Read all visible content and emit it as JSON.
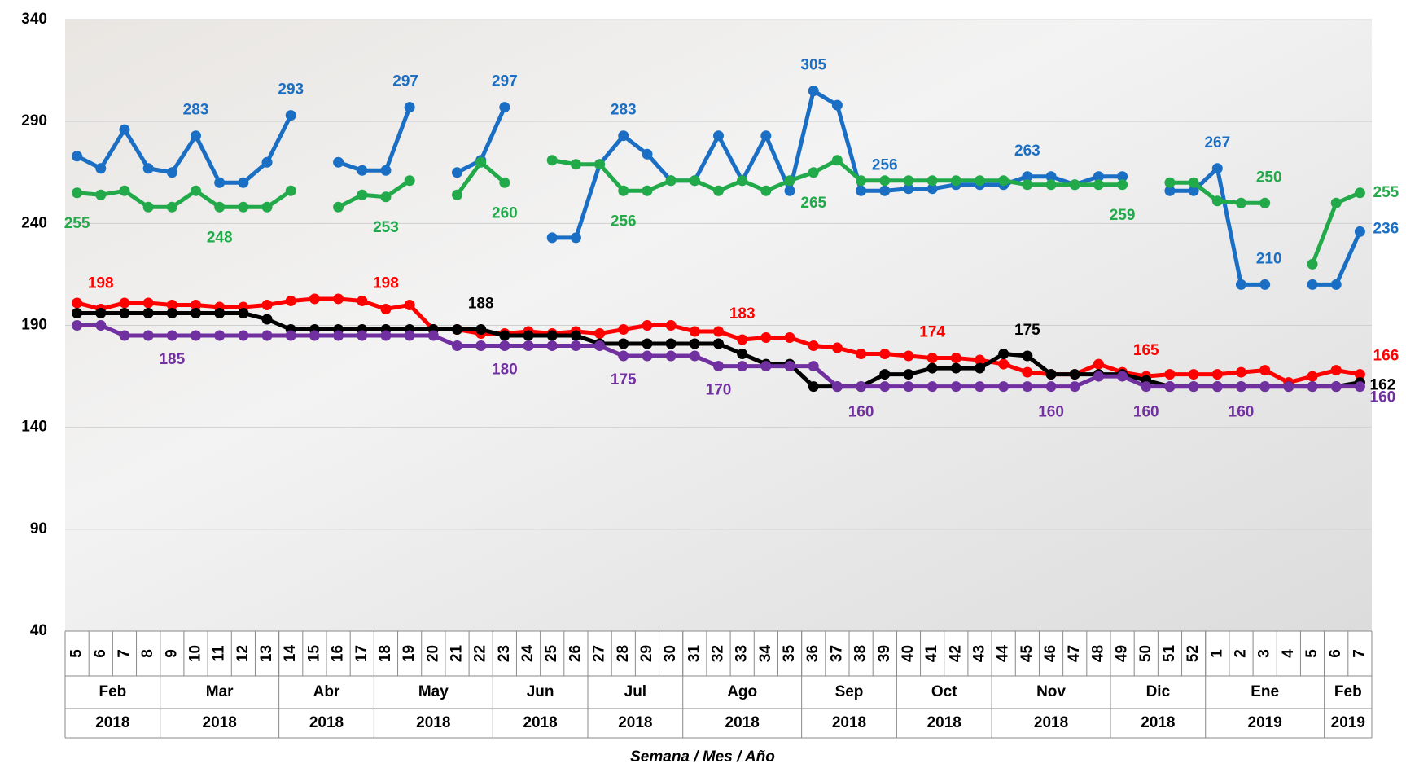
{
  "chart_data": {
    "type": "line",
    "x_title": "Semana / Mes / Año",
    "categories": [
      "5",
      "6",
      "7",
      "8",
      "9",
      "10",
      "11",
      "12",
      "13",
      "14",
      "15",
      "16",
      "17",
      "18",
      "19",
      "20",
      "21",
      "22",
      "23",
      "24",
      "25",
      "26",
      "27",
      "28",
      "29",
      "30",
      "31",
      "32",
      "33",
      "34",
      "35",
      "36",
      "37",
      "38",
      "39",
      "40",
      "41",
      "42",
      "43",
      "44",
      "45",
      "46",
      "47",
      "48",
      "49",
      "50",
      "51",
      "52",
      "1",
      "2",
      "3",
      "4",
      "5",
      "6",
      "7"
    ],
    "x_groups": [
      {
        "month": "Feb",
        "year": "2018",
        "weeks": 4
      },
      {
        "month": "Mar",
        "year": "2018",
        "weeks": 5
      },
      {
        "month": "Abr",
        "year": "2018",
        "weeks": 4
      },
      {
        "month": "May",
        "year": "2018",
        "weeks": 5
      },
      {
        "month": "Jun",
        "year": "2018",
        "weeks": 4
      },
      {
        "month": "Jul",
        "year": "2018",
        "weeks": 4
      },
      {
        "month": "Ago",
        "year": "2018",
        "weeks": 5
      },
      {
        "month": "Sep",
        "year": "2018",
        "weeks": 4
      },
      {
        "month": "Oct",
        "year": "2018",
        "weeks": 4
      },
      {
        "month": "Nov",
        "year": "2018",
        "weeks": 5
      },
      {
        "month": "Dic",
        "year": "2018",
        "weeks": 4
      },
      {
        "month": "Ene",
        "year": "2019",
        "weeks": 5
      },
      {
        "month": "Feb",
        "year": "2019",
        "weeks": 2
      }
    ],
    "series": [
      {
        "color": "#1a6fc4",
        "values": [
          273,
          267,
          286,
          267,
          265,
          283,
          260,
          260,
          270,
          293,
          null,
          270,
          266,
          266,
          297,
          null,
          265,
          271,
          297,
          null,
          233,
          233,
          269,
          283,
          274,
          261,
          261,
          283,
          261,
          283,
          256,
          305,
          298,
          256,
          256,
          257,
          257,
          259,
          259,
          259,
          263,
          263,
          259,
          263,
          263,
          null,
          256,
          256,
          267,
          210,
          210,
          null,
          210,
          210,
          236
        ]
      },
      {
        "color": "#22aa4a",
        "values": [
          255,
          254,
          256,
          248,
          248,
          256,
          248,
          248,
          248,
          256,
          null,
          248,
          254,
          253,
          261,
          null,
          254,
          270,
          260,
          null,
          271,
          269,
          269,
          256,
          256,
          261,
          261,
          256,
          261,
          256,
          261,
          265,
          271,
          261,
          261,
          261,
          261,
          261,
          261,
          261,
          259,
          259,
          259,
          259,
          259,
          null,
          260,
          260,
          251,
          250,
          250,
          null,
          220,
          250,
          255
        ]
      },
      {
        "color": "#ff0000",
        "values": [
          201,
          198,
          201,
          201,
          200,
          200,
          199,
          199,
          200,
          202,
          203,
          203,
          202,
          198,
          200,
          188,
          188,
          186,
          186,
          187,
          186,
          187,
          186,
          188,
          190,
          190,
          187,
          187,
          183,
          184,
          184,
          180,
          179,
          176,
          176,
          175,
          174,
          174,
          173,
          171,
          167,
          166,
          166,
          171,
          167,
          165,
          166,
          166,
          166,
          167,
          168,
          162,
          165,
          168,
          166
        ]
      },
      {
        "color": "#000000",
        "values": [
          196,
          196,
          196,
          196,
          196,
          196,
          196,
          196,
          193,
          188,
          188,
          188,
          188,
          188,
          188,
          188,
          188,
          188,
          185,
          185,
          185,
          185,
          181,
          181,
          181,
          181,
          181,
          181,
          176,
          171,
          171,
          160,
          160,
          160,
          166,
          166,
          169,
          169,
          169,
          176,
          175,
          166,
          166,
          166,
          166,
          163,
          160,
          160,
          160,
          160,
          160,
          160,
          160,
          160,
          162
        ]
      },
      {
        "color": "#7030a0",
        "values": [
          190,
          190,
          185,
          185,
          185,
          185,
          185,
          185,
          185,
          185,
          185,
          185,
          185,
          185,
          185,
          185,
          180,
          180,
          180,
          180,
          180,
          180,
          180,
          175,
          175,
          175,
          175,
          170,
          170,
          170,
          170,
          170,
          160,
          160,
          160,
          160,
          160,
          160,
          160,
          160,
          160,
          160,
          160,
          165,
          165,
          160,
          160,
          160,
          160,
          160,
          160,
          160,
          160,
          160,
          160
        ]
      }
    ],
    "ylim": [
      40,
      340
    ],
    "yticks": [
      40,
      90,
      140,
      190,
      240,
      290,
      340
    ],
    "grid": true
  }
}
